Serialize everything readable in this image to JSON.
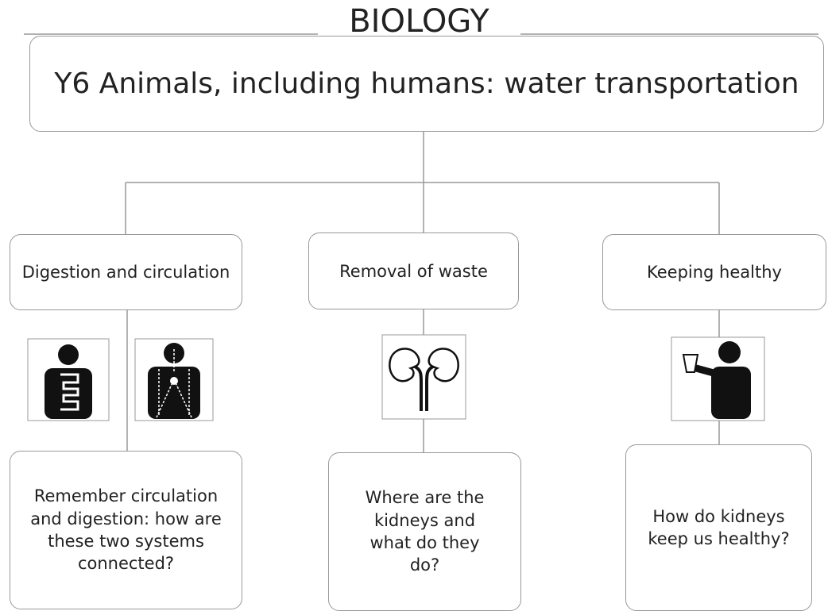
{
  "header": {
    "subject": "BIOLOGY",
    "title": "Y6 Animals, including humans: water transportation"
  },
  "branches": [
    {
      "label": "Digestion and circulation",
      "question": "Remember circulation and digestion: how are these two systems connected?"
    },
    {
      "label": "Removal of waste",
      "question": "Where are the kidneys and what do they do?"
    },
    {
      "label": "Keeping healthy",
      "question": "How do kidneys keep us healthy?"
    }
  ]
}
